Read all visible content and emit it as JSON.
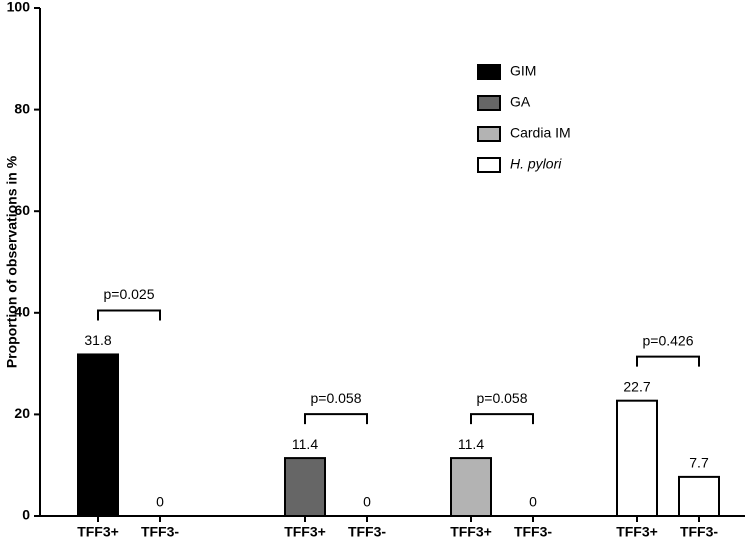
{
  "chart_data": {
    "type": "bar",
    "y_label": "Proportion of observations in %",
    "categories": [
      "TFF3+",
      "TFF3-",
      "TFF3+",
      "TFF3-",
      "TFF3+",
      "TFF3-",
      "TFF3+",
      "TFF3-"
    ],
    "series": [
      {
        "name": "GIM",
        "color": "#000000",
        "values": [
          31.8,
          0,
          null,
          null,
          null,
          null,
          null,
          null
        ]
      },
      {
        "name": "GA",
        "color": "#666666",
        "values": [
          null,
          null,
          11.4,
          0,
          null,
          null,
          null,
          null
        ]
      },
      {
        "name": "Cardia IM",
        "color": "#b3b3b3",
        "values": [
          null,
          null,
          null,
          null,
          11.4,
          0,
          null,
          null
        ]
      },
      {
        "name": "H. pylori",
        "color": "#ffffff",
        "italic": true,
        "values": [
          null,
          null,
          null,
          null,
          null,
          null,
          22.7,
          7.7
        ]
      }
    ],
    "annotations": [
      "p=0.025",
      "p=0.058",
      "p=0.058",
      "p=0.426"
    ],
    "ylim": [
      0,
      100
    ],
    "yticks": [
      0,
      20,
      40,
      60,
      80,
      100
    ],
    "grid": false,
    "legend": "top-right"
  }
}
